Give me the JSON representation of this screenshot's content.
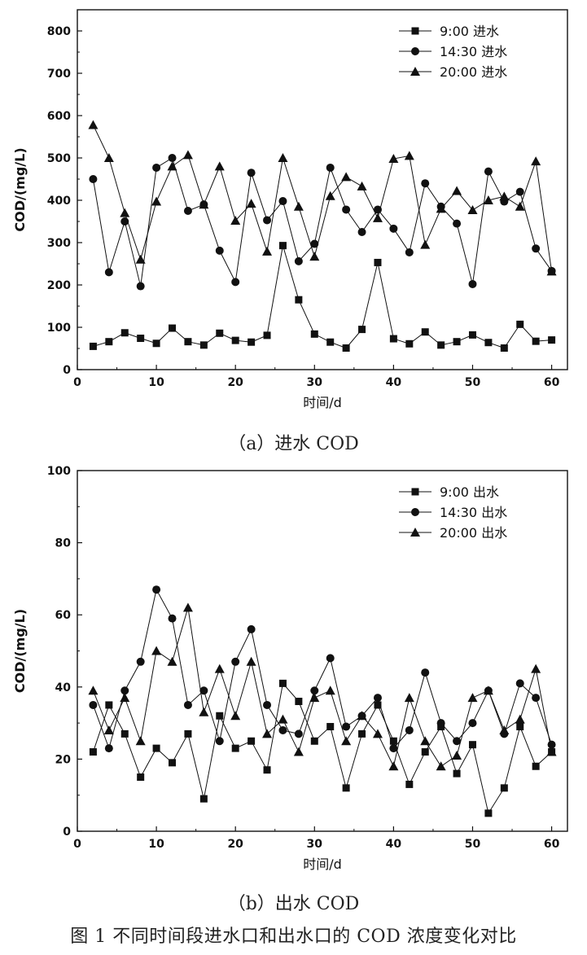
{
  "figure_caption": "图 1   不同时间段进水口和出水口的 COD 浓度变化对比",
  "chart_data": [
    {
      "type": "line",
      "subtitle": "（a）进水 COD",
      "xlabel": "时间/d",
      "ylabel": "COD/(mg/L)",
      "xlim": [
        0,
        62
      ],
      "ylim": [
        0,
        850
      ],
      "xticks": [
        0,
        10,
        20,
        30,
        40,
        50,
        60
      ],
      "yticks": [
        0,
        100,
        200,
        300,
        400,
        500,
        600,
        700,
        800
      ],
      "legend_position": "top-right",
      "x": [
        2,
        4,
        6,
        8,
        10,
        12,
        14,
        16,
        18,
        20,
        22,
        24,
        26,
        28,
        30,
        32,
        34,
        36,
        38,
        40,
        42,
        44,
        46,
        48,
        50,
        52,
        54,
        56,
        58,
        60
      ],
      "series": [
        {
          "name": "9:00   进水",
          "marker": "square",
          "values": [
            55,
            66,
            87,
            74,
            62,
            98,
            66,
            58,
            86,
            69,
            65,
            81,
            293,
            165,
            84,
            65,
            51,
            95,
            253,
            73,
            61,
            89,
            58,
            66,
            82,
            64,
            51,
            107,
            67,
            70
          ]
        },
        {
          "name": "14:30  进水",
          "marker": "circle",
          "values": [
            450,
            230,
            350,
            197,
            477,
            500,
            375,
            390,
            281,
            207,
            465,
            353,
            398,
            256,
            297,
            477,
            378,
            325,
            378,
            333,
            277,
            440,
            385,
            345,
            202,
            468,
            397,
            420,
            286,
            233
          ]
        },
        {
          "name": "20:00  进水",
          "marker": "triangle",
          "values": [
            578,
            500,
            370,
            260,
            397,
            480,
            507,
            390,
            480,
            352,
            392,
            279,
            500,
            385,
            267,
            410,
            455,
            433,
            358,
            498,
            505,
            295,
            380,
            422,
            377,
            400,
            409,
            385,
            492,
            232
          ]
        }
      ]
    },
    {
      "type": "line",
      "subtitle": "（b）出水 COD",
      "xlabel": "时间/d",
      "ylabel": "COD/(mg/L)",
      "xlim": [
        0,
        62
      ],
      "ylim": [
        0,
        100
      ],
      "xticks": [
        0,
        10,
        20,
        30,
        40,
        50,
        60
      ],
      "yticks": [
        0,
        20,
        40,
        60,
        80,
        100
      ],
      "legend_position": "top-right",
      "x": [
        2,
        4,
        6,
        8,
        10,
        12,
        14,
        16,
        18,
        20,
        22,
        24,
        26,
        28,
        30,
        32,
        34,
        36,
        38,
        40,
        42,
        44,
        46,
        48,
        50,
        52,
        54,
        56,
        58,
        60
      ],
      "series": [
        {
          "name": "9:00   出水",
          "marker": "square",
          "values": [
            22,
            35,
            27,
            15,
            23,
            19,
            27,
            9,
            32,
            23,
            25,
            17,
            41,
            36,
            25,
            29,
            12,
            27,
            35,
            25,
            13,
            22,
            29,
            16,
            24,
            5,
            12,
            29,
            18,
            22
          ]
        },
        {
          "name": "14:30 出水",
          "marker": "circle",
          "values": [
            35,
            23,
            39,
            47,
            67,
            59,
            35,
            39,
            25,
            47,
            56,
            35,
            28,
            27,
            39,
            48,
            29,
            32,
            37,
            23,
            28,
            44,
            30,
            25,
            30,
            39,
            27,
            41,
            37,
            24
          ]
        },
        {
          "name": "20:00  出水",
          "marker": "triangle",
          "values": [
            39,
            28,
            37,
            25,
            50,
            47,
            62,
            33,
            45,
            32,
            47,
            27,
            31,
            22,
            37,
            39,
            25,
            32,
            27,
            18,
            37,
            25,
            18,
            21,
            37,
            39,
            28,
            31,
            45,
            22
          ]
        }
      ]
    }
  ]
}
